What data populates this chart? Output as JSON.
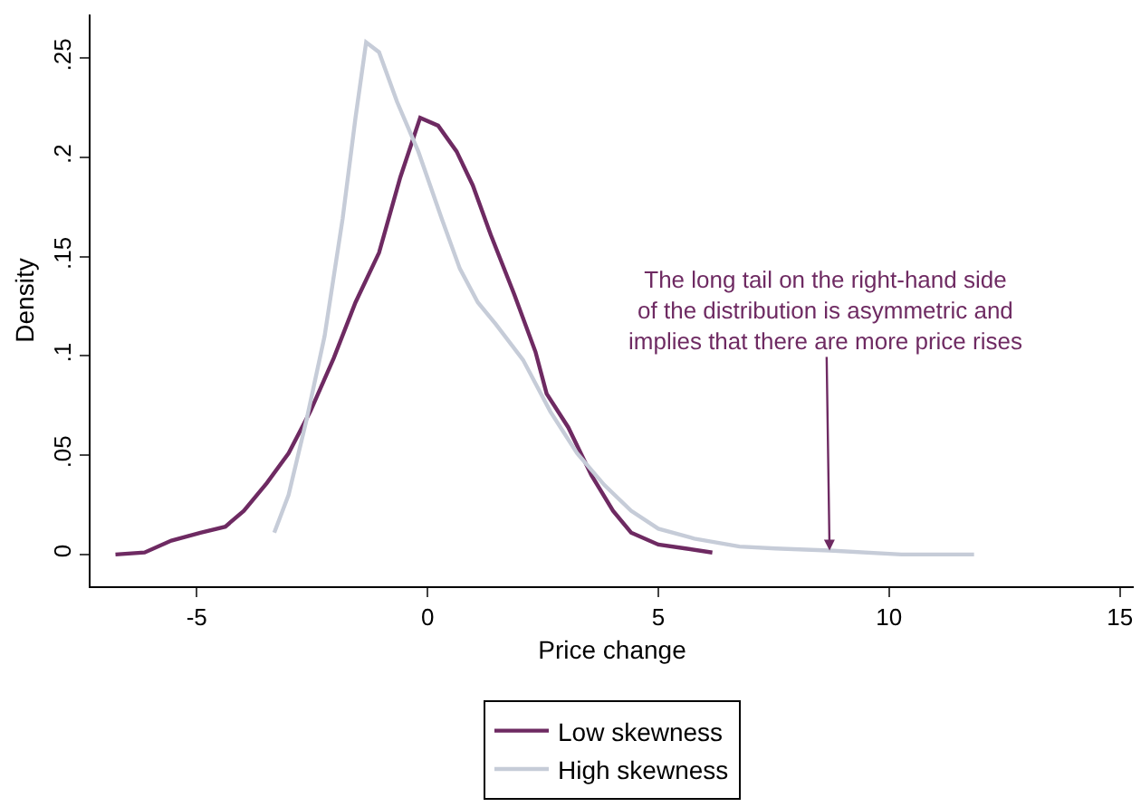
{
  "chart_data": {
    "type": "line",
    "xlabel": "Price change",
    "ylabel": "Density",
    "xlim": [
      -7.3,
      15.3
    ],
    "xticks": [
      -5,
      0,
      5,
      10,
      15
    ],
    "ylim": [
      -0.016,
      0.272
    ],
    "yticks": [
      {
        "value": 0,
        "label": "0"
      },
      {
        "value": 0.05,
        "label": ".05"
      },
      {
        "value": 0.1,
        "label": ".1"
      },
      {
        "value": 0.15,
        "label": ".15"
      },
      {
        "value": 0.2,
        "label": ".2"
      },
      {
        "value": 0.25,
        "label": ".25"
      }
    ],
    "grid": false,
    "legend": "bottom",
    "marker": "none",
    "line_style": "solid",
    "series": [
      {
        "name": "Low skewness",
        "color": "#6e2a62",
        "x": [
          -6.76,
          -6.13,
          -5.55,
          -4.92,
          -4.38,
          -3.98,
          -3.48,
          -3.01,
          -2.54,
          -2.03,
          -1.56,
          -1.05,
          -0.59,
          -0.16,
          0.23,
          0.63,
          0.98,
          1.37,
          1.88,
          2.34,
          2.58,
          3.05,
          3.55,
          4.02,
          4.41,
          5.0,
          5.59,
          6.17
        ],
        "values": [
          0,
          0.001,
          0.007,
          0.011,
          0.014,
          0.022,
          0.036,
          0.051,
          0.072,
          0.099,
          0.127,
          0.152,
          0.19,
          0.22,
          0.216,
          0.203,
          0.186,
          0.161,
          0.131,
          0.102,
          0.081,
          0.064,
          0.04,
          0.022,
          0.011,
          0.005,
          0.003,
          0.001
        ]
      },
      {
        "name": "High skewness",
        "color": "#c6ccd8",
        "x": [
          -3.32,
          -3.01,
          -2.62,
          -2.23,
          -1.84,
          -1.56,
          -1.33,
          -1.05,
          -0.66,
          -0.2,
          0.31,
          0.7,
          1.09,
          1.48,
          2.07,
          2.66,
          3.24,
          3.83,
          4.41,
          5.0,
          5.78,
          6.76,
          7.54,
          8.71,
          10.27,
          11.84
        ],
        "values": [
          0.011,
          0.03,
          0.068,
          0.11,
          0.169,
          0.22,
          0.258,
          0.253,
          0.228,
          0.203,
          0.169,
          0.144,
          0.127,
          0.116,
          0.098,
          0.072,
          0.051,
          0.035,
          0.022,
          0.013,
          0.008,
          0.004,
          0.003,
          0.002,
          0,
          0
        ]
      }
    ],
    "annotations": [
      {
        "text": "The long tail on the right-hand side\nof the distribution is asymmetric and\nimplies that there are more price rises",
        "x": 8.71,
        "y": 0.002
      }
    ]
  }
}
